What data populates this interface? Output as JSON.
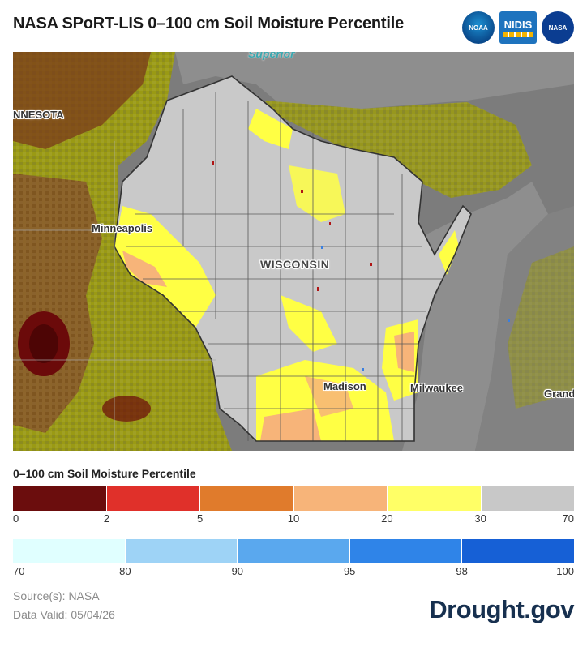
{
  "header": {
    "title": "NASA SPoRT-LIS 0–100 cm Soil Moisture Percentile",
    "logos": [
      {
        "name": "noaa-logo",
        "text": "NOAA"
      },
      {
        "name": "nidis-logo",
        "text": "NIDIS"
      },
      {
        "name": "nasa-logo",
        "text": "NASA"
      }
    ]
  },
  "map": {
    "labels": {
      "superior": "Superior",
      "minnesota": "NNESOTA",
      "minneapolis": "Minneapolis",
      "wisconsin": "WISCONSIN",
      "madison": "Madison",
      "milwaukee": "Milwaukee",
      "grand": "Grand"
    },
    "colors": {
      "land_outside": "#7c7c7c",
      "water": "#8e8e8e",
      "wi_gray": "#c9c9c9",
      "yellow": "#ffff44",
      "peach": "#f7b479",
      "olive": "#9a9a14",
      "brown": "#8a5a2e",
      "dark_red": "#6b0a0a"
    }
  },
  "legend": {
    "title": "0–100 cm Soil Moisture Percentile",
    "dry": {
      "colors": [
        "#6b0d0d",
        "#e0302a",
        "#e07b2c",
        "#f7b479",
        "#ffff66",
        "#c8c8c8"
      ],
      "ticks": [
        "0",
        "2",
        "5",
        "10",
        "20",
        "30",
        "70"
      ]
    },
    "wet": {
      "colors": [
        "#e0ffff",
        "#9ed3f6",
        "#5aa8ee",
        "#2f84e8",
        "#1660d6"
      ],
      "ticks": [
        "70",
        "80",
        "90",
        "95",
        "98",
        "100"
      ]
    }
  },
  "footer": {
    "source": "Source(s): NASA",
    "valid": "Data Valid: 05/04/26",
    "brand": "Drought.gov"
  }
}
